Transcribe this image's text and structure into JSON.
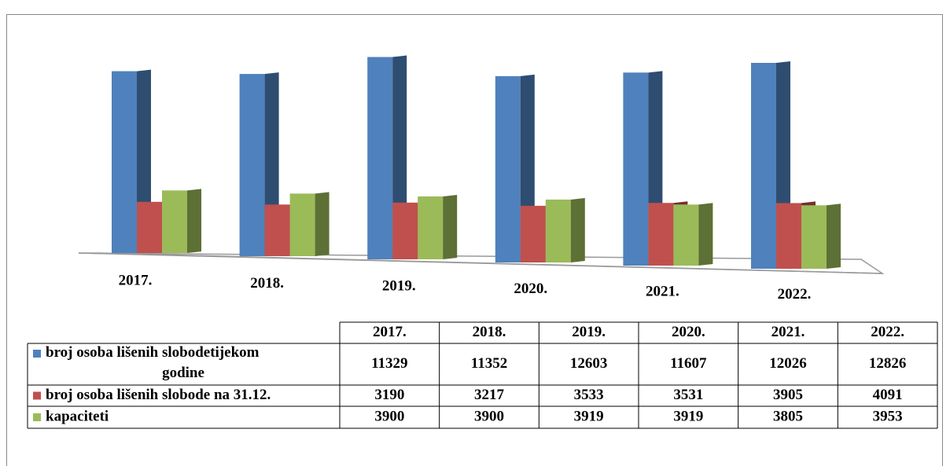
{
  "chart_data": {
    "type": "bar3d",
    "categories": [
      "2017.",
      "2018.",
      "2019.",
      "2020.",
      "2021.",
      "2022."
    ],
    "series": [
      {
        "name": "broj osoba lišenih slobodetijekom godine",
        "color": "#4f81bd",
        "values": [
          11329,
          11352,
          12603,
          11607,
          12026,
          12826
        ]
      },
      {
        "name": "broj osoba lišenih slobode na 31.12.",
        "color": "#c0504d",
        "values": [
          3190,
          3217,
          3533,
          3531,
          3905,
          4091
        ]
      },
      {
        "name": "kapaciteti",
        "color": "#9bbb59",
        "values": [
          3900,
          3900,
          3919,
          3919,
          3805,
          3953
        ]
      }
    ]
  }
}
